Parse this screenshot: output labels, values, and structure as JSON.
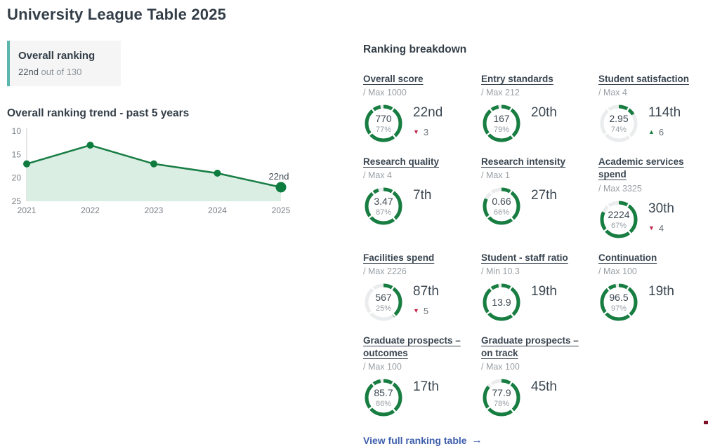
{
  "page": {
    "title": "University League Table 2025"
  },
  "overall_ranking": {
    "label": "Overall ranking",
    "rank": "22nd",
    "suffix": "out of 130"
  },
  "trend": {
    "title": "Overall ranking trend - past 5 years"
  },
  "chart_data": {
    "type": "area",
    "x": [
      2021,
      2022,
      2023,
      2024,
      2025
    ],
    "values": [
      17,
      13,
      17,
      19,
      22
    ],
    "y_axis_inverted": true,
    "ylim": [
      10,
      25
    ],
    "yticks": [
      10,
      15,
      20,
      25
    ],
    "annotation": {
      "x": 2025,
      "label": "22nd"
    },
    "line_color": "#177d44",
    "fill_color": "#daeee3",
    "dot_color": "#0e7c3e",
    "axis_color": "#c9cdd1",
    "grid": false,
    "legend": false
  },
  "breakdown": {
    "title": "Ranking breakdown",
    "cards": [
      {
        "title": "Overall score",
        "max": "/ Max 1000",
        "value": "770",
        "pct": "77%",
        "rank": "22nd",
        "change": {
          "dir": "down",
          "amount": "3"
        },
        "ring_fill": 0.97
      },
      {
        "title": "Entry standards",
        "max": "/ Max 212",
        "value": "167",
        "pct": "79%",
        "rank": "20th",
        "change": null,
        "ring_fill": 0.97
      },
      {
        "title": "Student satisfaction",
        "max": "/ Max 4",
        "value": "2.95",
        "pct": "74%",
        "rank": "114th",
        "change": {
          "dir": "up",
          "amount": "6"
        },
        "ring_fill": 0.16
      },
      {
        "title": "Research quality",
        "max": "/ Max 4",
        "value": "3.47",
        "pct": "87%",
        "rank": "7th",
        "change": null,
        "ring_fill": 0.95
      },
      {
        "title": "Research intensity",
        "max": "/ Max 1",
        "value": "0.66",
        "pct": "66%",
        "rank": "27th",
        "change": null,
        "ring_fill": 0.82
      },
      {
        "title": "Academic services spend",
        "max": "/ Max 3325",
        "value": "2224",
        "pct": "67%",
        "rank": "30th",
        "change": {
          "dir": "down",
          "amount": "4"
        },
        "ring_fill": 0.82
      },
      {
        "title": "Facilities spend",
        "max": "/ Max 2226",
        "value": "567",
        "pct": "25%",
        "rank": "87th",
        "change": {
          "dir": "down",
          "amount": "5"
        },
        "ring_fill": 0.4
      },
      {
        "title": "Student - staff ratio",
        "max": "/ Min 10.3",
        "value": "13.9",
        "pct": null,
        "rank": "19th",
        "change": null,
        "ring_fill": 0.97
      },
      {
        "title": "Continuation",
        "max": "/ Max 100",
        "value": "96.5",
        "pct": "97%",
        "rank": "19th",
        "change": null,
        "ring_fill": 0.97
      },
      {
        "title": "Graduate prospects – outcomes",
        "max": "/ Max 100",
        "value": "85.7",
        "pct": "86%",
        "rank": "17th",
        "change": null,
        "ring_fill": 0.97
      },
      {
        "title": "Graduate prospects – on track",
        "max": "/ Max 100",
        "value": "77.9",
        "pct": "78%",
        "rank": "45th",
        "change": null,
        "ring_fill": 0.86
      }
    ],
    "link": {
      "label": "View full ranking table",
      "arrow": "→"
    }
  },
  "icons": {
    "down_triangle": "▼",
    "up_triangle": "▲"
  },
  "colors": {
    "accent_teal": "#5ab5ad",
    "gauge_green": "#177d41",
    "gauge_track": "#ebeced",
    "down_red": "#c12349",
    "up_green": "#177d41",
    "link_blue": "#3e5fac",
    "heading": "#333e48"
  }
}
